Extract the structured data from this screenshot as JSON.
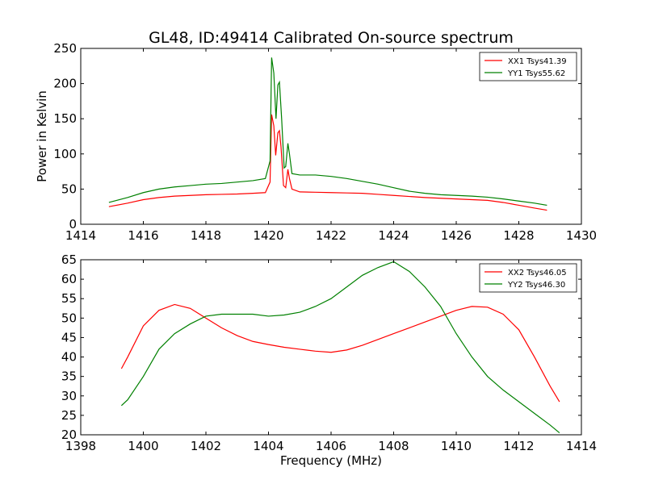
{
  "title": "GL48, ID:49414 Calibrated On-source spectrum",
  "chart_data": [
    {
      "type": "line",
      "ylabel": "Power in Kelvin",
      "xlabel": "",
      "xlim": [
        1414,
        1430
      ],
      "ylim": [
        0,
        250
      ],
      "xticks": [
        "1414",
        "1416",
        "1418",
        "1420",
        "1422",
        "1424",
        "1426",
        "1428",
        "1430"
      ],
      "yticks": [
        "0",
        "50",
        "100",
        "150",
        "200",
        "250"
      ],
      "legend_position": "top-right",
      "series": [
        {
          "name": "XX1 Tsys41.39",
          "color": "#ff0000",
          "points": [
            [
              1414.9,
              25
            ],
            [
              1415.5,
              30
            ],
            [
              1416,
              35
            ],
            [
              1416.5,
              38
            ],
            [
              1417,
              40
            ],
            [
              1417.5,
              41
            ],
            [
              1418,
              42
            ],
            [
              1418.5,
              42.5
            ],
            [
              1419,
              43
            ],
            [
              1419.5,
              44
            ],
            [
              1419.9,
              45
            ],
            [
              1420.05,
              60
            ],
            [
              1420.1,
              156
            ],
            [
              1420.17,
              140
            ],
            [
              1420.23,
              98
            ],
            [
              1420.3,
              130
            ],
            [
              1420.35,
              133
            ],
            [
              1420.4,
              110
            ],
            [
              1420.48,
              55
            ],
            [
              1420.55,
              52
            ],
            [
              1420.62,
              78
            ],
            [
              1420.67,
              65
            ],
            [
              1420.75,
              50
            ],
            [
              1421,
              46
            ],
            [
              1421.5,
              45.5
            ],
            [
              1422,
              45
            ],
            [
              1422.5,
              44.5
            ],
            [
              1423,
              44
            ],
            [
              1423.5,
              42.5
            ],
            [
              1424,
              41
            ],
            [
              1424.5,
              39.5
            ],
            [
              1425,
              38
            ],
            [
              1425.5,
              37
            ],
            [
              1426,
              36
            ],
            [
              1426.5,
              35
            ],
            [
              1427,
              34
            ],
            [
              1427.5,
              31
            ],
            [
              1428,
              27
            ],
            [
              1428.5,
              23
            ],
            [
              1428.9,
              20
            ]
          ]
        },
        {
          "name": "YY1 Tsys55.62",
          "color": "#008000",
          "points": [
            [
              1414.9,
              31
            ],
            [
              1415.5,
              38
            ],
            [
              1416,
              45
            ],
            [
              1416.5,
              50
            ],
            [
              1417,
              53
            ],
            [
              1417.5,
              55
            ],
            [
              1418,
              57
            ],
            [
              1418.5,
              58
            ],
            [
              1419,
              60
            ],
            [
              1419.5,
              62
            ],
            [
              1419.9,
              65
            ],
            [
              1420.05,
              90
            ],
            [
              1420.1,
              237
            ],
            [
              1420.17,
              215
            ],
            [
              1420.24,
              150
            ],
            [
              1420.3,
              198
            ],
            [
              1420.35,
              202
            ],
            [
              1420.42,
              150
            ],
            [
              1420.5,
              80
            ],
            [
              1420.55,
              82
            ],
            [
              1420.62,
              115
            ],
            [
              1420.67,
              100
            ],
            [
              1420.75,
              72
            ],
            [
              1421,
              70
            ],
            [
              1421.5,
              70
            ],
            [
              1422,
              68
            ],
            [
              1422.5,
              65
            ],
            [
              1423,
              61
            ],
            [
              1423.5,
              57
            ],
            [
              1424,
              52
            ],
            [
              1424.5,
              47
            ],
            [
              1425,
              44
            ],
            [
              1425.5,
              42
            ],
            [
              1426,
              41
            ],
            [
              1426.5,
              40
            ],
            [
              1427,
              38.5
            ],
            [
              1427.5,
              36
            ],
            [
              1428,
              33
            ],
            [
              1428.5,
              30
            ],
            [
              1428.9,
              27
            ]
          ]
        }
      ]
    },
    {
      "type": "line",
      "xlabel": "Frequency (MHz)",
      "ylabel": "",
      "xlim": [
        1398,
        1414
      ],
      "ylim": [
        20,
        65
      ],
      "xticks": [
        "1398",
        "1400",
        "1402",
        "1404",
        "1406",
        "1408",
        "1410",
        "1412",
        "1414"
      ],
      "yticks": [
        "20",
        "25",
        "30",
        "35",
        "40",
        "45",
        "50",
        "55",
        "60",
        "65"
      ],
      "legend_position": "top-right",
      "series": [
        {
          "name": "XX2 Tsys46.05",
          "color": "#ff0000",
          "points": [
            [
              1399.3,
              37
            ],
            [
              1399.5,
              40
            ],
            [
              1400,
              48
            ],
            [
              1400.5,
              52
            ],
            [
              1401,
              53.5
            ],
            [
              1401.5,
              52.5
            ],
            [
              1402,
              50
            ],
            [
              1402.5,
              47.5
            ],
            [
              1403,
              45.5
            ],
            [
              1403.5,
              44
            ],
            [
              1404,
              43.2
            ],
            [
              1404.5,
              42.5
            ],
            [
              1405,
              42
            ],
            [
              1405.5,
              41.5
            ],
            [
              1406,
              41.2
            ],
            [
              1406.5,
              41.8
            ],
            [
              1407,
              43
            ],
            [
              1407.5,
              44.5
            ],
            [
              1408,
              46
            ],
            [
              1408.5,
              47.5
            ],
            [
              1409,
              49
            ],
            [
              1409.5,
              50.5
            ],
            [
              1410,
              52
            ],
            [
              1410.5,
              53
            ],
            [
              1411,
              52.8
            ],
            [
              1411.5,
              51
            ],
            [
              1412,
              47
            ],
            [
              1412.5,
              40
            ],
            [
              1413,
              32.5
            ],
            [
              1413.3,
              28.5
            ]
          ]
        },
        {
          "name": "YY2 Tsys46.30",
          "color": "#008000",
          "points": [
            [
              1399.3,
              27.5
            ],
            [
              1399.5,
              29
            ],
            [
              1400,
              35
            ],
            [
              1400.5,
              42
            ],
            [
              1401,
              46
            ],
            [
              1401.5,
              48.5
            ],
            [
              1402,
              50.5
            ],
            [
              1402.5,
              51
            ],
            [
              1403,
              51
            ],
            [
              1403.5,
              51
            ],
            [
              1404,
              50.5
            ],
            [
              1404.5,
              50.8
            ],
            [
              1405,
              51.5
            ],
            [
              1405.5,
              53
            ],
            [
              1406,
              55
            ],
            [
              1406.5,
              58
            ],
            [
              1407,
              61
            ],
            [
              1407.5,
              63
            ],
            [
              1408,
              64.5
            ],
            [
              1408.5,
              62
            ],
            [
              1409,
              58
            ],
            [
              1409.5,
              53
            ],
            [
              1410,
              46
            ],
            [
              1410.5,
              40
            ],
            [
              1411,
              35
            ],
            [
              1411.5,
              31.5
            ],
            [
              1412,
              28.5
            ],
            [
              1412.5,
              25.5
            ],
            [
              1413,
              22.5
            ],
            [
              1413.3,
              20.5
            ]
          ]
        }
      ]
    }
  ]
}
